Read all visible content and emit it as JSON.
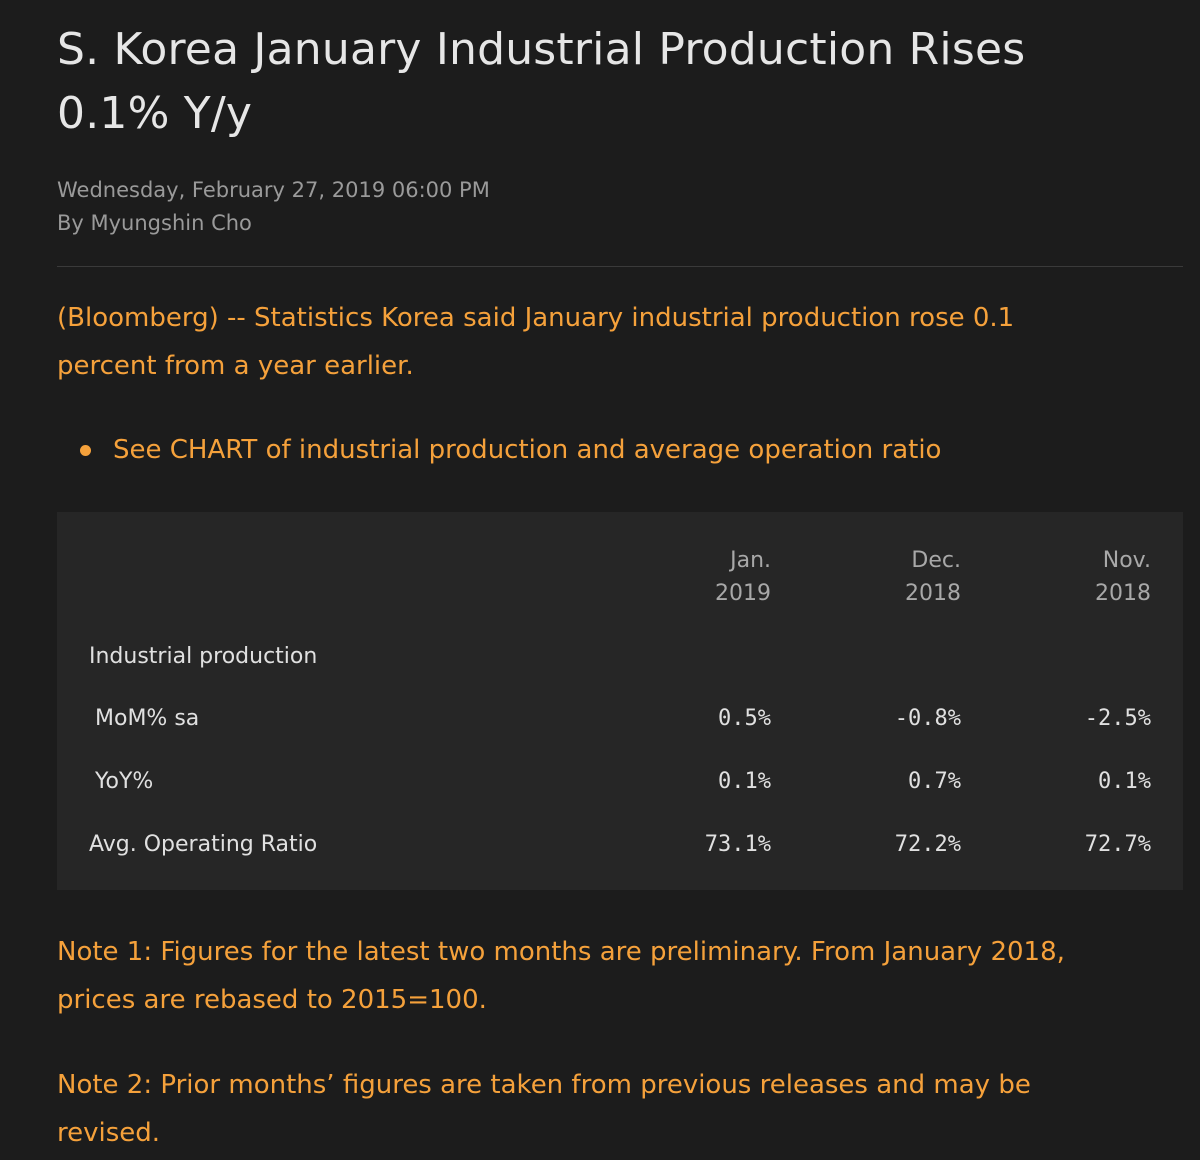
{
  "article": {
    "headline_line1": "S. Korea January Industrial Production Rises",
    "headline_line2": "0.1% Y/y",
    "date": "Wednesday, February 27, 2019 06:00 PM",
    "byline": "By Myungshin Cho",
    "lede_line1": "(Bloomberg) -- Statistics Korea said January industrial production rose 0.1",
    "lede_line2": "percent from a year earlier.",
    "bullet": "See CHART of industrial production and average operation ratio",
    "note1_line1": "Note 1: Figures for the latest two months are preliminary. From January 2018,",
    "note1_line2": "prices are rebased to 2015=100.",
    "note2_line1": "Note 2: Prior months’ figures are taken from previous releases and may be",
    "note2_line2": "revised."
  },
  "table": {
    "columns": [
      {
        "month": "Jan.",
        "year": "2019"
      },
      {
        "month": "Dec.",
        "year": "2018"
      },
      {
        "month": "Nov.",
        "year": "2018"
      }
    ],
    "section_label": "Industrial production",
    "rows": [
      {
        "label": "MoM% sa",
        "values": [
          "0.5%",
          "-0.8%",
          "-2.5%"
        ]
      },
      {
        "label": "YoY%",
        "values": [
          "0.1%",
          "0.7%",
          "0.1%"
        ]
      },
      {
        "label": "Avg. Operating Ratio",
        "values": [
          "73.1%",
          "72.2%",
          "72.7%"
        ]
      }
    ]
  },
  "colors": {
    "background": "#1c1c1c",
    "accent": "#f5a13b",
    "table_background": "#262626"
  }
}
